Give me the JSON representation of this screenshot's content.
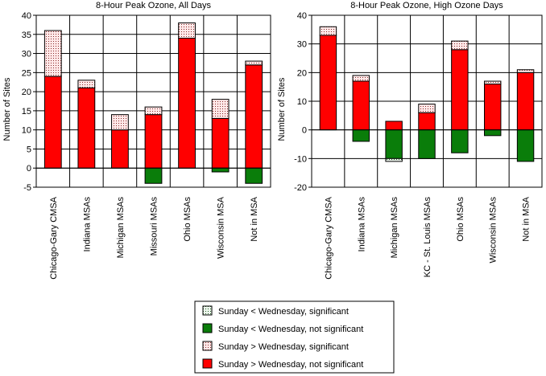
{
  "colors": {
    "red": "#ff0000",
    "green": "#0a7d0a",
    "dot_light": "#ffe0e0",
    "dot_green_light": "#e8f4e8"
  },
  "legend": {
    "items": [
      {
        "label": "Sunday < Wednesday, significant",
        "style": "green-dotted"
      },
      {
        "label": "Sunday < Wednesday, not significant",
        "style": "green-solid"
      },
      {
        "label": "Sunday > Wednesday, significant",
        "style": "red-dotted"
      },
      {
        "label": "Sunday > Wednesday, not significant",
        "style": "red-solid"
      }
    ]
  },
  "chart_data": [
    {
      "type": "bar",
      "title": "8-Hour Peak Ozone, All Days",
      "ylabel": "Number of Sites",
      "xlabel": "",
      "ylim": [
        -5,
        40
      ],
      "yticks": [
        -5,
        0,
        5,
        10,
        15,
        20,
        25,
        30,
        35,
        40
      ],
      "grid": true,
      "stacked": true,
      "categories": [
        "Chicago-Gary CMSA",
        "Indiana MSAs",
        "Michigan MSAs",
        "Missouri MSAs",
        "Ohio MSAs",
        "Wisconsin MSA",
        "Not in MSA"
      ],
      "series": [
        {
          "name": "Sunday > Wednesday, not significant",
          "values": [
            24,
            21,
            10,
            14,
            34,
            13,
            27
          ]
        },
        {
          "name": "Sunday > Wednesday, significant",
          "values": [
            12,
            2,
            4,
            2,
            4,
            5,
            1
          ]
        },
        {
          "name": "Sunday < Wednesday, not significant",
          "values": [
            0,
            0,
            0,
            -4,
            0,
            -1,
            -4
          ]
        },
        {
          "name": "Sunday < Wednesday, significant",
          "values": [
            0,
            0,
            0,
            0,
            0,
            0,
            0
          ]
        }
      ]
    },
    {
      "type": "bar",
      "title": "8-Hour Peak Ozone, High Ozone Days",
      "ylabel": "Number of Sites",
      "xlabel": "",
      "ylim": [
        -20,
        40
      ],
      "yticks": [
        -20,
        -10,
        0,
        10,
        20,
        30,
        40
      ],
      "grid": true,
      "stacked": true,
      "categories": [
        "Chicago-Gary CMSA",
        "Indiana MSAs",
        "Michigan MSAs",
        "KC - St. Louis MSAs",
        "Ohio MSAs",
        "Wisconsin MSAs",
        "Not in MSA"
      ],
      "series": [
        {
          "name": "Sunday > Wednesday, not significant",
          "values": [
            33,
            17,
            3,
            6,
            28,
            16,
            20
          ]
        },
        {
          "name": "Sunday > Wednesday, significant",
          "values": [
            3,
            2,
            0,
            3,
            3,
            1,
            1
          ]
        },
        {
          "name": "Sunday < Wednesday, not significant",
          "values": [
            0,
            -4,
            -10,
            -10,
            -8,
            -2,
            -11
          ]
        },
        {
          "name": "Sunday < Wednesday, significant",
          "values": [
            0,
            0,
            -1,
            0,
            0,
            0,
            0
          ]
        }
      ]
    }
  ]
}
